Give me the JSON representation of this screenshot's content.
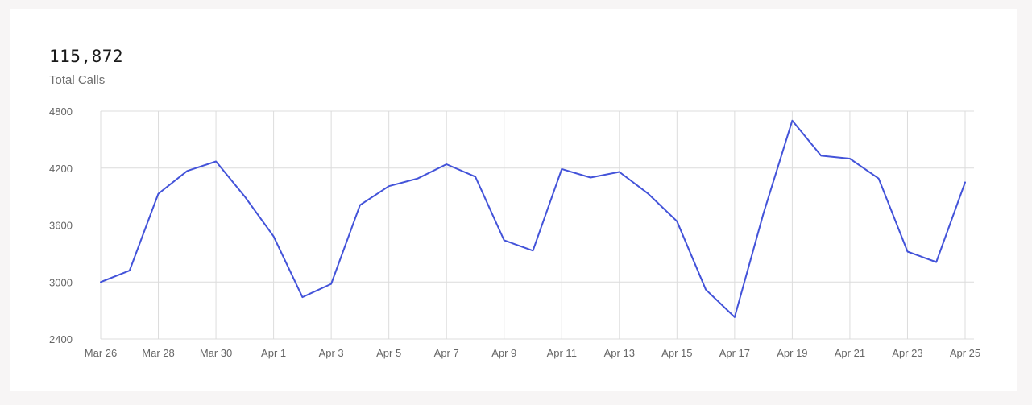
{
  "metric": {
    "value": "115,872",
    "label": "Total Calls"
  },
  "colors": {
    "line": "#4353d9",
    "grid": "#dcdcdc",
    "tick_text": "#666666"
  },
  "chart_data": {
    "type": "line",
    "title": "",
    "xlabel": "",
    "ylabel": "",
    "grid": true,
    "legend": "none",
    "ylim": [
      2400,
      4800
    ],
    "yticks": [
      4800,
      4200,
      3600,
      3000,
      2400
    ],
    "x": [
      "Mar 26",
      "Mar 27",
      "Mar 28",
      "Mar 29",
      "Mar 30",
      "Mar 31",
      "Apr 1",
      "Apr 2",
      "Apr 3",
      "Apr 4",
      "Apr 5",
      "Apr 6",
      "Apr 7",
      "Apr 8",
      "Apr 9",
      "Apr 10",
      "Apr 11",
      "Apr 12",
      "Apr 13",
      "Apr 14",
      "Apr 15",
      "Apr 16",
      "Apr 17",
      "Apr 18",
      "Apr 19",
      "Apr 20",
      "Apr 21",
      "Apr 22",
      "Apr 23",
      "Apr 24",
      "Apr 25"
    ],
    "xticks": [
      "Mar 26",
      "Mar 28",
      "Mar 30",
      "Apr 1",
      "Apr 3",
      "Apr 5",
      "Apr 7",
      "Apr 9",
      "Apr 11",
      "Apr 13",
      "Apr 15",
      "Apr 17",
      "Apr 19",
      "Apr 21",
      "Apr 23",
      "Apr 25"
    ],
    "series": [
      {
        "values": [
          3000,
          3120,
          3930,
          4170,
          4270,
          3900,
          3480,
          2840,
          2980,
          3810,
          4010,
          4090,
          4240,
          4110,
          3440,
          3330,
          4190,
          4100,
          4160,
          3930,
          3640,
          2920,
          2630,
          3720,
          4700,
          4330,
          4300,
          4090,
          3320,
          3210,
          4050
        ]
      }
    ]
  }
}
